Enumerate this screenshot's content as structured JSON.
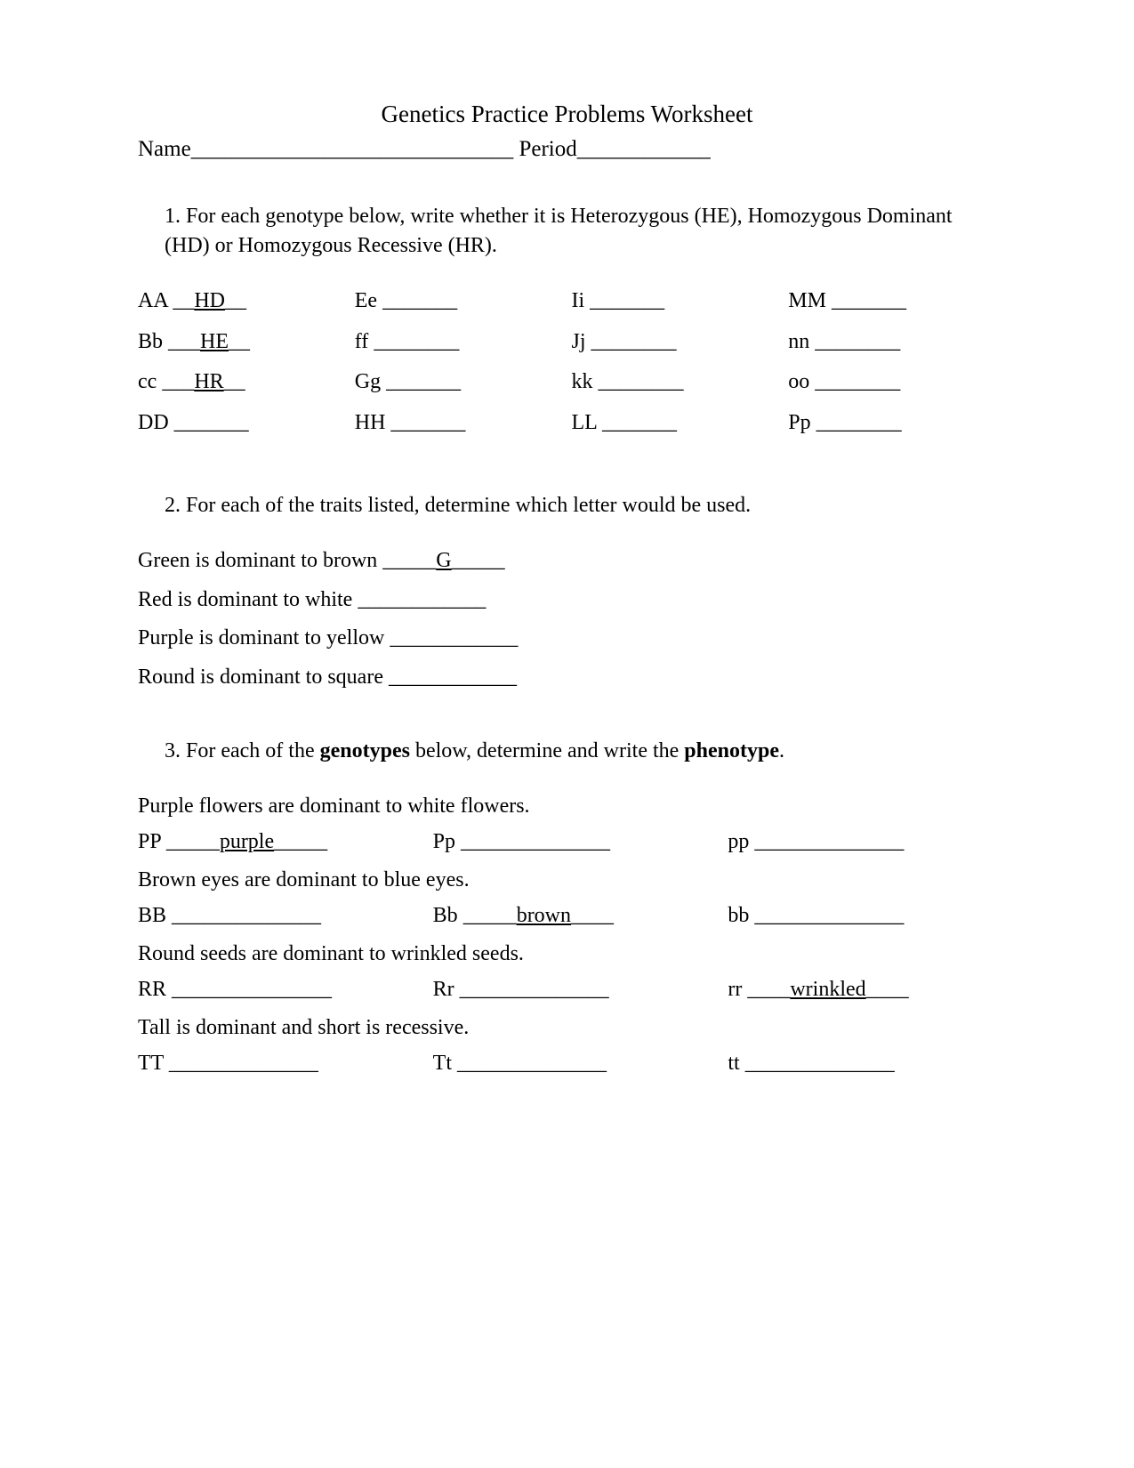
{
  "title": "Genetics Practice Problems Worksheet",
  "header": {
    "name_label": "Name",
    "name_underline": "_____________________________",
    "period_label": " Period",
    "period_underline": "____________"
  },
  "q1": {
    "num": "1.  ",
    "text": "For each genotype below, write whether it is Heterozygous (HE), Homozygous Dominant (HD) or Homozygous Recessive (HR).",
    "cells": [
      {
        "g": "AA",
        "sep": " __",
        "ans": "HD",
        "tail": "__"
      },
      {
        "g": "Ee",
        "sep": " ",
        "ans": "",
        "tail": "_______"
      },
      {
        "g": "Ii",
        "sep": " ",
        "ans": "",
        "tail": "_______"
      },
      {
        "g": "MM",
        "sep": " ",
        "ans": "",
        "tail": "_______"
      },
      {
        "g": "Bb",
        "sep": " ___",
        "ans": "HE",
        "tail": "__"
      },
      {
        "g": "ff",
        "sep": " ",
        "ans": "",
        "tail": "________"
      },
      {
        "g": "Jj",
        "sep": " ",
        "ans": "",
        "tail": "________"
      },
      {
        "g": "nn",
        "sep": " ",
        "ans": "",
        "tail": "________"
      },
      {
        "g": "cc",
        "sep": " ___",
        "ans": "HR",
        "tail": "__"
      },
      {
        "g": "Gg",
        "sep": " ",
        "ans": "",
        "tail": "_______"
      },
      {
        "g": "kk",
        "sep": " ",
        "ans": "",
        "tail": "________"
      },
      {
        "g": "oo",
        "sep": " ",
        "ans": "",
        "tail": "________"
      },
      {
        "g": "DD",
        "sep": " ",
        "ans": "",
        "tail": "_______"
      },
      {
        "g": "HH",
        "sep": " ",
        "ans": "",
        "tail": "_______"
      },
      {
        "g": "LL",
        "sep": " ",
        "ans": "",
        "tail": "_______"
      },
      {
        "g": "Pp",
        "sep": " ",
        "ans": "",
        "tail": "________"
      }
    ]
  },
  "q2": {
    "num": "2.  ",
    "text": "For each of the traits listed, determine which letter would be used.",
    "lines": [
      {
        "t": "Green is dominant to brown _____",
        "ans": "G",
        "tail": "_____"
      },
      {
        "t": "Red is dominant to white ____________",
        "ans": "",
        "tail": ""
      },
      {
        "t": "Purple is dominant to yellow ____________",
        "ans": "",
        "tail": ""
      },
      {
        "t": "Round is dominant to square ____________",
        "ans": "",
        "tail": ""
      }
    ]
  },
  "q3": {
    "num": "3.  ",
    "text_pre": "For each of the ",
    "text_bold1": "genotypes",
    "text_mid": " below, determine and write the ",
    "text_bold2": "phenotype",
    "text_post": ".",
    "groups": [
      {
        "trait": "Purple flowers are dominant to white flowers.",
        "row": [
          {
            "g": "PP",
            "sep": " _____",
            "ans": "purple",
            "tail": "_____"
          },
          {
            "g": "Pp",
            "sep": " ",
            "ans": "",
            "tail": "______________"
          },
          {
            "g": "pp",
            "sep": " ",
            "ans": "",
            "tail": "______________"
          }
        ]
      },
      {
        "trait": "Brown eyes are dominant to blue eyes.",
        "row": [
          {
            "g": "BB",
            "sep": " ",
            "ans": "",
            "tail": "______________"
          },
          {
            "g": "Bb",
            "sep": " _____",
            "ans": "brown",
            "tail": "____"
          },
          {
            "g": "bb",
            "sep": " ",
            "ans": "",
            "tail": "______________"
          }
        ]
      },
      {
        "trait": "Round seeds are dominant to wrinkled seeds.",
        "row": [
          {
            "g": "RR",
            "sep": " ",
            "ans": "",
            "tail": "_______________"
          },
          {
            "g": "Rr",
            "sep": " ",
            "ans": "",
            "tail": "______________"
          },
          {
            "g": "rr",
            "sep": " ____",
            "ans": "wrinkled",
            "tail": "____"
          }
        ]
      },
      {
        "trait": "Tall is dominant and short is recessive.",
        "row": [
          {
            "g": "TT",
            "sep": " ",
            "ans": "",
            "tail": "______________"
          },
          {
            "g": "Tt",
            "sep": " ",
            "ans": "",
            "tail": "______________"
          },
          {
            "g": "tt",
            "sep": " ",
            "ans": "",
            "tail": "______________"
          }
        ]
      }
    ]
  }
}
